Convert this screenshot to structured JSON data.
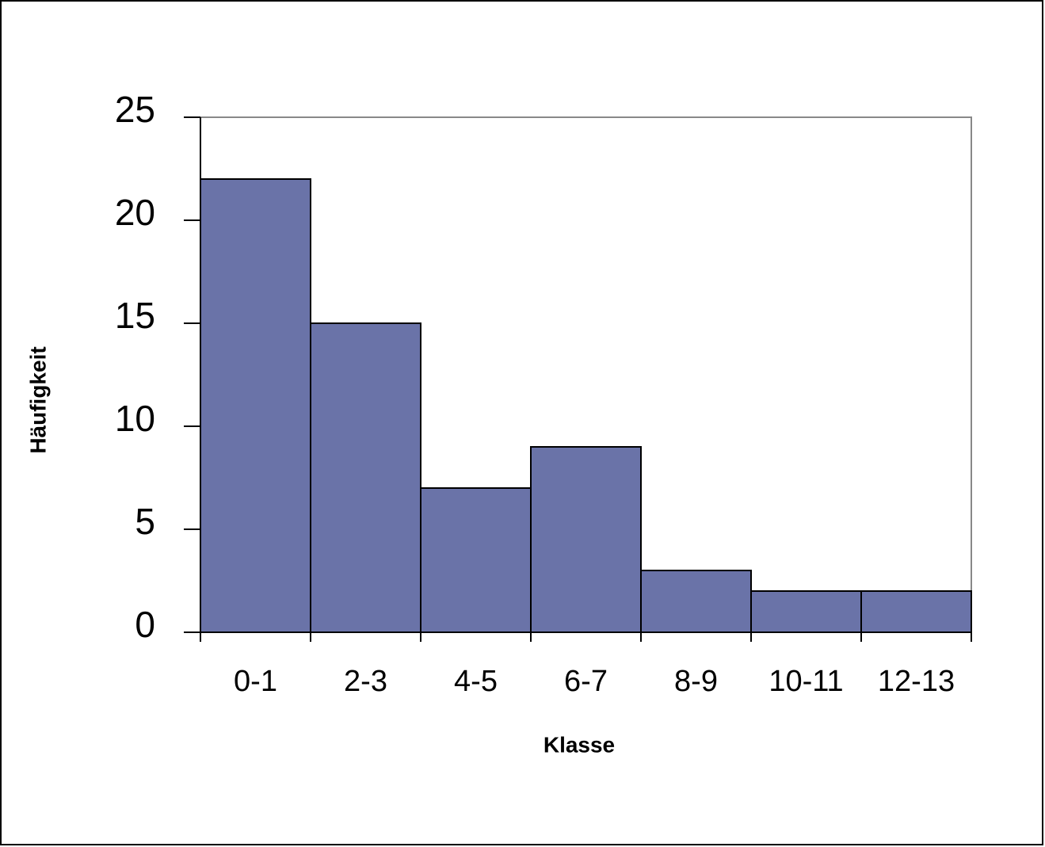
{
  "chart_data": {
    "type": "bar",
    "categories": [
      "0-1",
      "2-3",
      "4-5",
      "6-7",
      "8-9",
      "10-11",
      "12-13"
    ],
    "values": [
      22,
      15,
      7,
      9,
      3,
      2,
      2
    ],
    "color": "#6a73a8",
    "ylim": [
      0,
      25
    ],
    "yticks": [
      0,
      5,
      10,
      15,
      20,
      25
    ],
    "x_label": "Klasse",
    "y_label": "Häufigkeit",
    "grid": false
  }
}
